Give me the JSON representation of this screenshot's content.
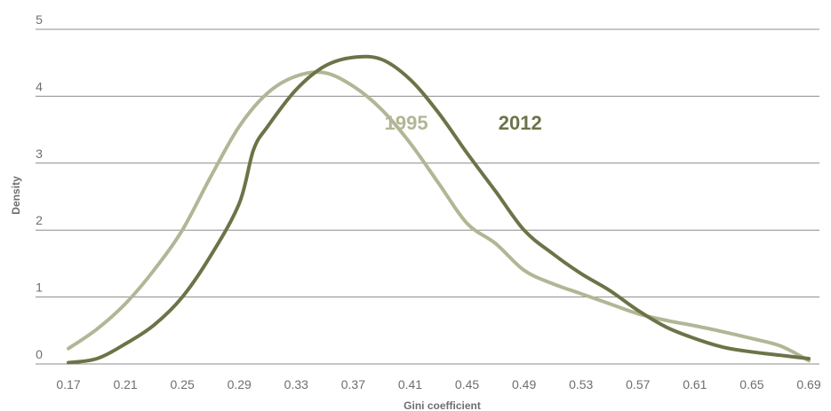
{
  "chart_data": {
    "type": "line",
    "xlabel": "Gini coefficient",
    "ylabel": "Density",
    "xlim": [
      0.17,
      0.69
    ],
    "ylim": [
      0,
      5
    ],
    "x_ticks": [
      "0.17",
      "0.21",
      "0.25",
      "0.29",
      "0.33",
      "0.37",
      "0.41",
      "0.45",
      "0.49",
      "0.53",
      "0.57",
      "0.61",
      "0.65",
      "0.69"
    ],
    "y_ticks": [
      "0",
      "1",
      "2",
      "3",
      "4",
      "5"
    ],
    "grid": "horizontal",
    "series": [
      {
        "name": "1995",
        "color": "#b3b696",
        "label_position": {
          "x": 0.392,
          "y": 3.5
        },
        "points": [
          [
            0.17,
            0.23
          ],
          [
            0.19,
            0.52
          ],
          [
            0.21,
            0.9
          ],
          [
            0.23,
            1.4
          ],
          [
            0.25,
            2.0
          ],
          [
            0.27,
            2.8
          ],
          [
            0.29,
            3.55
          ],
          [
            0.31,
            4.05
          ],
          [
            0.33,
            4.3
          ],
          [
            0.35,
            4.35
          ],
          [
            0.37,
            4.15
          ],
          [
            0.39,
            3.8
          ],
          [
            0.41,
            3.3
          ],
          [
            0.43,
            2.7
          ],
          [
            0.45,
            2.1
          ],
          [
            0.47,
            1.8
          ],
          [
            0.49,
            1.4
          ],
          [
            0.51,
            1.2
          ],
          [
            0.53,
            1.05
          ],
          [
            0.55,
            0.9
          ],
          [
            0.57,
            0.75
          ],
          [
            0.59,
            0.65
          ],
          [
            0.61,
            0.57
          ],
          [
            0.63,
            0.48
          ],
          [
            0.65,
            0.38
          ],
          [
            0.67,
            0.27
          ],
          [
            0.69,
            0.05
          ]
        ]
      },
      {
        "name": "2012",
        "color": "#6b7447",
        "label_position": {
          "x": 0.472,
          "y": 3.5
        },
        "points": [
          [
            0.17,
            0.02
          ],
          [
            0.19,
            0.08
          ],
          [
            0.21,
            0.3
          ],
          [
            0.23,
            0.58
          ],
          [
            0.25,
            1.0
          ],
          [
            0.27,
            1.62
          ],
          [
            0.29,
            2.4
          ],
          [
            0.3,
            3.2
          ],
          [
            0.31,
            3.55
          ],
          [
            0.33,
            4.1
          ],
          [
            0.35,
            4.45
          ],
          [
            0.37,
            4.58
          ],
          [
            0.39,
            4.55
          ],
          [
            0.41,
            4.25
          ],
          [
            0.43,
            3.75
          ],
          [
            0.45,
            3.15
          ],
          [
            0.47,
            2.58
          ],
          [
            0.49,
            2.0
          ],
          [
            0.51,
            1.65
          ],
          [
            0.53,
            1.35
          ],
          [
            0.55,
            1.1
          ],
          [
            0.57,
            0.8
          ],
          [
            0.59,
            0.55
          ],
          [
            0.61,
            0.38
          ],
          [
            0.63,
            0.25
          ],
          [
            0.65,
            0.18
          ],
          [
            0.67,
            0.13
          ],
          [
            0.69,
            0.08
          ]
        ]
      }
    ]
  }
}
